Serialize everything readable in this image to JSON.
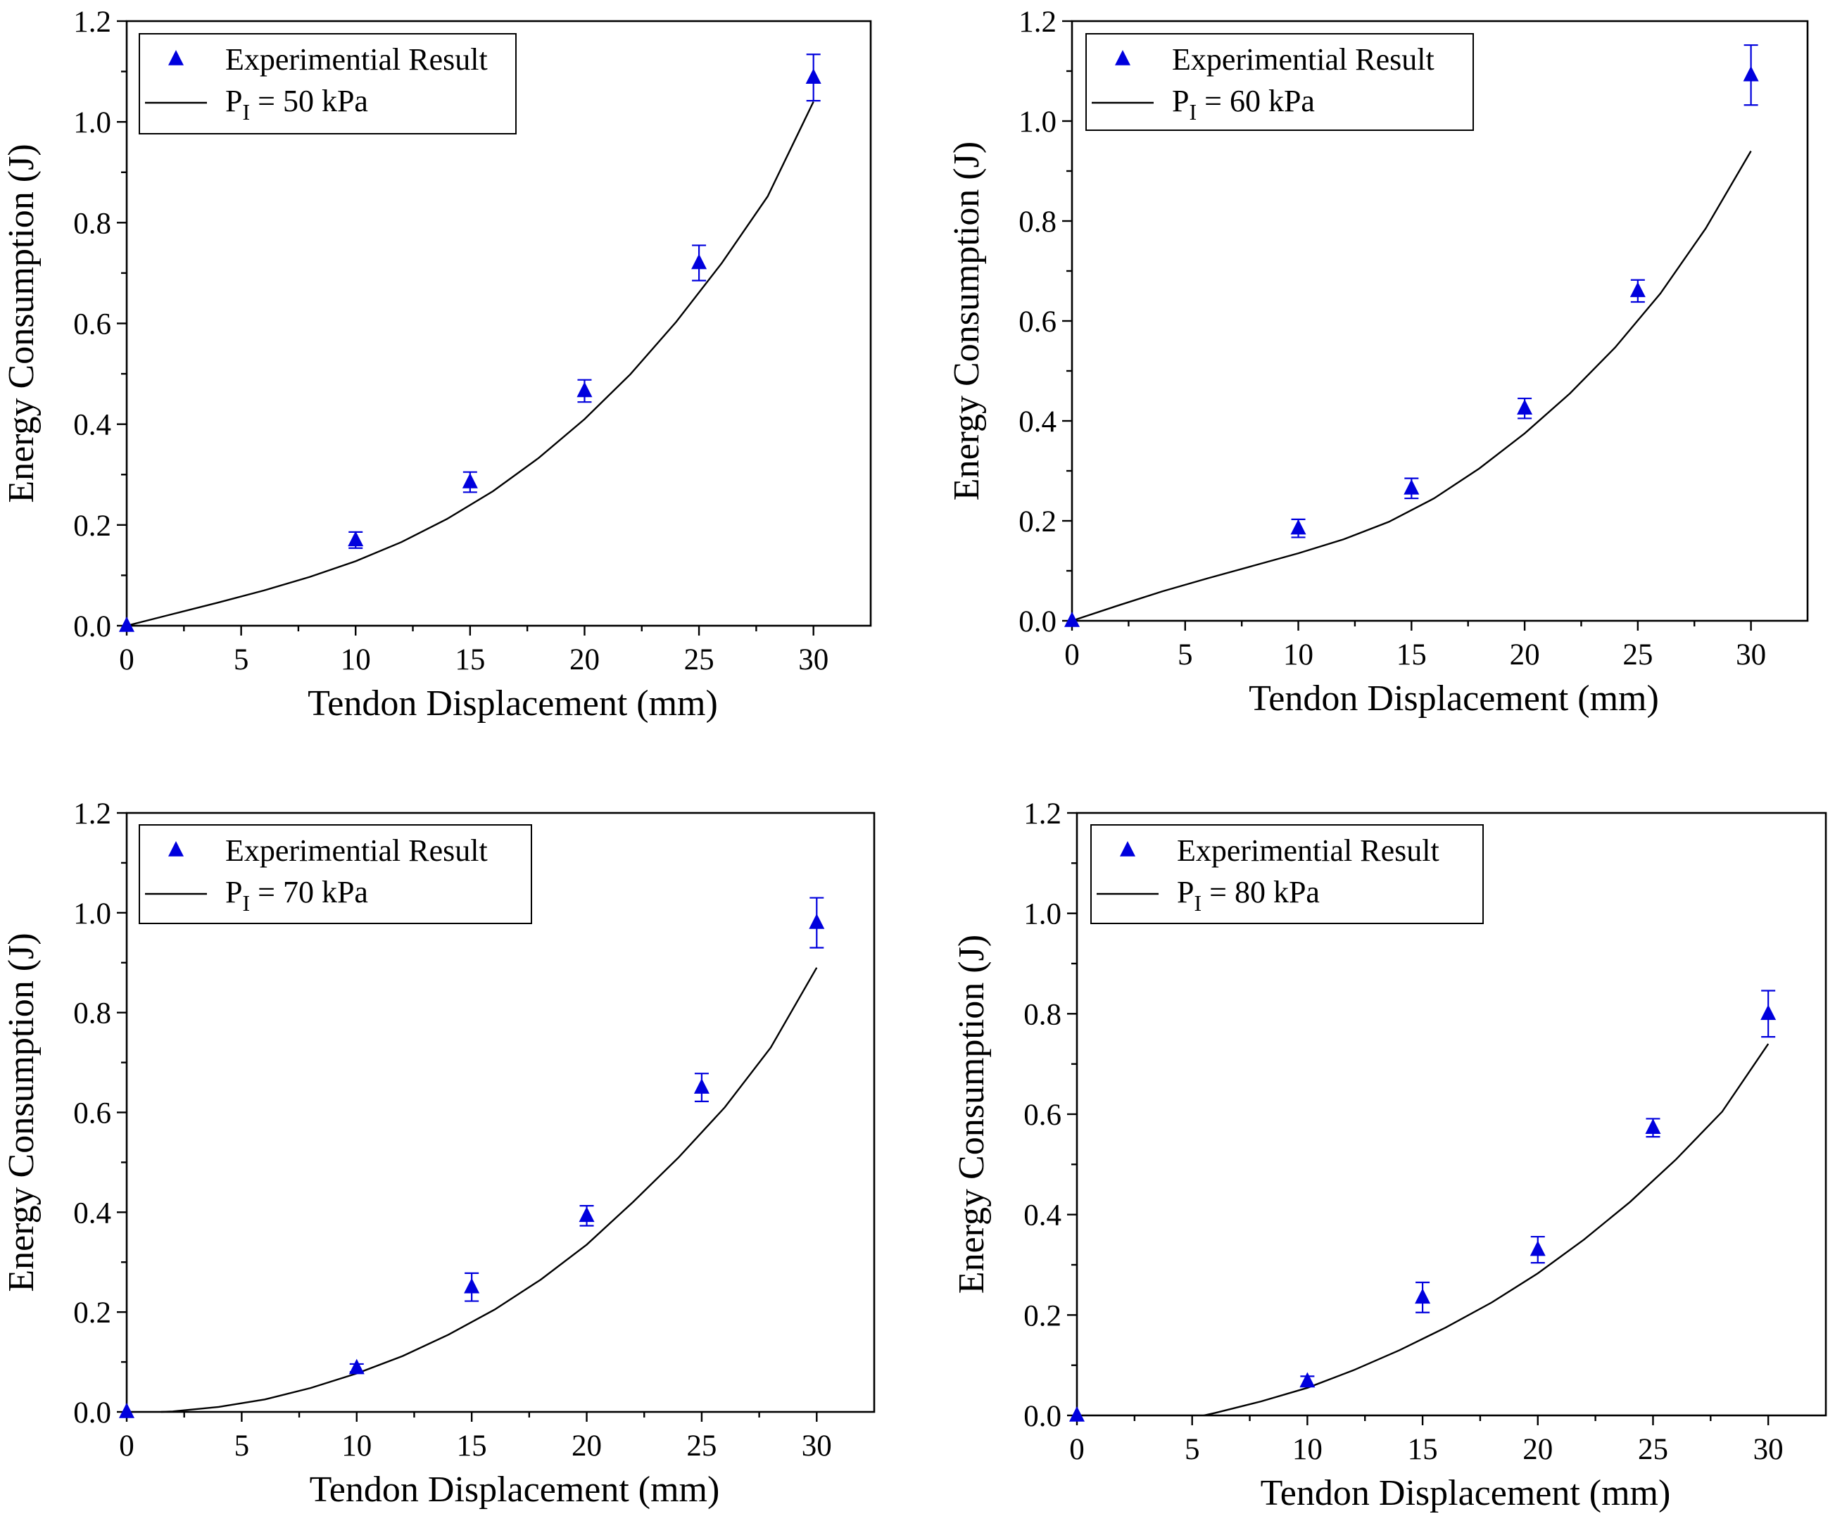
{
  "figure_title": "",
  "chart_data": [
    {
      "type": "scatter",
      "xlabel": "Tendon Displacement (mm)",
      "ylabel": "Energy Consumption (J)",
      "xlim": [
        0,
        32.5
      ],
      "ylim": [
        0,
        1.2
      ],
      "x_ticks": [
        0,
        5,
        10,
        15,
        20,
        25,
        30
      ],
      "y_ticks": [
        0.0,
        0.2,
        0.4,
        0.6,
        0.8,
        1.0,
        1.2
      ],
      "x_tick_labels": [
        "0",
        "5",
        "10",
        "15",
        "20",
        "25",
        "30"
      ],
      "y_tick_labels": [
        "0.0",
        "0.2",
        "0.4",
        "0.6",
        "0.8",
        "1.0",
        "1.2"
      ],
      "legend": {
        "position": "top-left",
        "marker_label": "Experimential Result",
        "line_prefix": "P",
        "line_subscript": "I",
        "line_suffix": " = 50 kPa"
      },
      "series": [
        {
          "name": "Experimential Result",
          "kind": "points",
          "color": "#0000dd",
          "x": [
            0,
            10,
            15,
            20,
            25,
            30
          ],
          "y": [
            0.0,
            0.17,
            0.285,
            0.466,
            0.72,
            1.088
          ],
          "err": [
            0.0,
            0.016,
            0.02,
            0.022,
            0.035,
            0.046
          ]
        },
        {
          "name": "P_I = 50 kPa",
          "kind": "line",
          "color": "#000000",
          "x": [
            0,
            2,
            4,
            6,
            8,
            10,
            12,
            14,
            16,
            18,
            20,
            22,
            24,
            26,
            28,
            30
          ],
          "y": [
            0.0,
            0.023,
            0.046,
            0.07,
            0.097,
            0.128,
            0.166,
            0.212,
            0.267,
            0.333,
            0.41,
            0.499,
            0.603,
            0.72,
            0.852,
            1.04
          ]
        }
      ]
    },
    {
      "type": "scatter",
      "xlabel": "Tendon Displacement (mm)",
      "ylabel": "Energy Consumption (J)",
      "xlim": [
        0,
        32.5
      ],
      "ylim": [
        0,
        1.2
      ],
      "x_ticks": [
        0,
        5,
        10,
        15,
        20,
        25,
        30
      ],
      "y_ticks": [
        0.0,
        0.2,
        0.4,
        0.6,
        0.8,
        1.0,
        1.2
      ],
      "x_tick_labels": [
        "0",
        "5",
        "10",
        "15",
        "20",
        "25",
        "30"
      ],
      "y_tick_labels": [
        "0.0",
        "0.2",
        "0.4",
        "0.6",
        "0.8",
        "1.0",
        "1.2"
      ],
      "legend": {
        "position": "top-left",
        "marker_label": "Experimential Result",
        "line_prefix": "P",
        "line_subscript": "I",
        "line_suffix": " = 60 kPa"
      },
      "series": [
        {
          "name": "Experimential Result",
          "kind": "points",
          "color": "#0000dd",
          "x": [
            0,
            10,
            15,
            20,
            25,
            30
          ],
          "y": [
            0.0,
            0.185,
            0.265,
            0.425,
            0.66,
            1.092
          ],
          "err": [
            0.0,
            0.018,
            0.02,
            0.02,
            0.022,
            0.06
          ]
        },
        {
          "name": "P_I = 60 kPa",
          "kind": "line",
          "color": "#000000",
          "x": [
            0,
            2,
            4,
            6,
            8,
            10,
            12,
            14,
            16,
            18,
            20,
            22,
            24,
            26,
            28,
            30
          ],
          "y": [
            0.0,
            0.03,
            0.059,
            0.085,
            0.11,
            0.135,
            0.163,
            0.198,
            0.245,
            0.305,
            0.375,
            0.455,
            0.547,
            0.655,
            0.785,
            0.94
          ]
        }
      ]
    },
    {
      "type": "scatter",
      "xlabel": "Tendon Displacement (mm)",
      "ylabel": "Energy Consumption (J)",
      "xlim": [
        0,
        32.5
      ],
      "ylim": [
        0,
        1.2
      ],
      "x_ticks": [
        0,
        5,
        10,
        15,
        20,
        25,
        30
      ],
      "y_ticks": [
        0.0,
        0.2,
        0.4,
        0.6,
        0.8,
        1.0,
        1.2
      ],
      "x_tick_labels": [
        "0",
        "5",
        "10",
        "15",
        "20",
        "25",
        "30"
      ],
      "y_tick_labels": [
        "0.0",
        "0.2",
        "0.4",
        "0.6",
        "0.8",
        "1.0",
        "1.2"
      ],
      "legend": {
        "position": "top-left",
        "marker_label": "Experimential Result",
        "line_prefix": "P",
        "line_subscript": "I",
        "line_suffix": " = 70 kPa"
      },
      "series": [
        {
          "name": "Experimential Result",
          "kind": "points",
          "color": "#0000dd",
          "x": [
            0,
            10,
            15,
            20,
            25,
            30
          ],
          "y": [
            0.0,
            0.088,
            0.25,
            0.393,
            0.65,
            0.98
          ],
          "err": [
            0.0,
            0.008,
            0.028,
            0.02,
            0.028,
            0.05
          ]
        },
        {
          "name": "P_I = 70 kPa",
          "kind": "line",
          "color": "#000000",
          "x": [
            1.5,
            2,
            4,
            6,
            8,
            10,
            12,
            14,
            16,
            18,
            20,
            22,
            24,
            26,
            28,
            30
          ],
          "y": [
            0.0,
            0.001,
            0.01,
            0.025,
            0.048,
            0.077,
            0.112,
            0.155,
            0.205,
            0.265,
            0.335,
            0.42,
            0.51,
            0.61,
            0.73,
            0.89
          ]
        }
      ]
    },
    {
      "type": "scatter",
      "xlabel": "Tendon Displacement (mm)",
      "ylabel": "Energy Consumption (J)",
      "xlim": [
        0,
        32.5
      ],
      "ylim": [
        0,
        1.2
      ],
      "x_ticks": [
        0,
        5,
        10,
        15,
        20,
        25,
        30
      ],
      "y_ticks": [
        0.0,
        0.2,
        0.4,
        0.6,
        0.8,
        1.0,
        1.2
      ],
      "x_tick_labels": [
        "0",
        "5",
        "10",
        "15",
        "20",
        "25",
        "30"
      ],
      "y_tick_labels": [
        "0.0",
        "0.2",
        "0.4",
        "0.6",
        "0.8",
        "1.0",
        "1.2"
      ],
      "legend": {
        "position": "top-left",
        "marker_label": "Experimential Result",
        "line_prefix": "P",
        "line_subscript": "I",
        "line_suffix": " = 80 kPa"
      },
      "series": [
        {
          "name": "Experimential Result",
          "kind": "points",
          "color": "#0000dd",
          "x": [
            0,
            10,
            15,
            20,
            25,
            30
          ],
          "y": [
            0.0,
            0.068,
            0.235,
            0.33,
            0.573,
            0.8
          ],
          "err": [
            0.0,
            0.01,
            0.03,
            0.026,
            0.018,
            0.046
          ]
        },
        {
          "name": "P_I = 80 kPa",
          "kind": "line",
          "color": "#000000",
          "x": [
            5.5,
            6,
            8,
            10,
            12,
            14,
            16,
            18,
            20,
            22,
            24,
            26,
            28,
            30
          ],
          "y": [
            0.0,
            0.005,
            0.028,
            0.055,
            0.09,
            0.13,
            0.175,
            0.225,
            0.283,
            0.35,
            0.425,
            0.51,
            0.605,
            0.74
          ]
        }
      ]
    }
  ]
}
